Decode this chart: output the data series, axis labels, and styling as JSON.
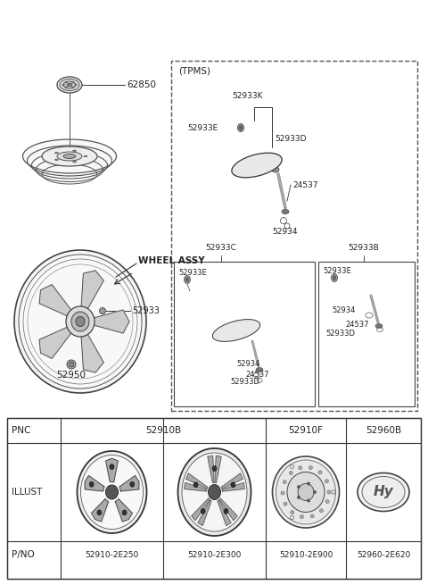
{
  "bg_color": "#ffffff",
  "line_color": "#333333",
  "dark_color": "#111111",
  "gray_color": "#888888",
  "table": {
    "pnc_row": [
      "PNC",
      "52910B",
      "52910F",
      "52960B"
    ],
    "illust_label": "ILLUST",
    "pno_row": [
      "P/NO",
      "52910-2E250",
      "52910-2E300",
      "52910-2E900",
      "52960-2E620"
    ]
  }
}
